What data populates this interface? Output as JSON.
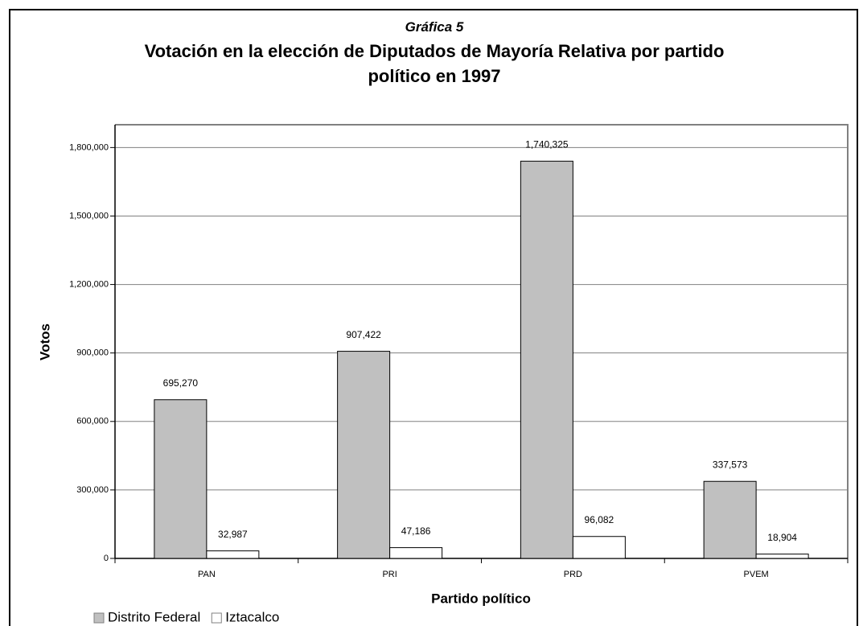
{
  "chart_data": {
    "type": "bar",
    "label": "Gráfica 5",
    "title": "Votación en la elección de Diputados de Mayoría Relativa por partido político en 1997",
    "x_label": "Partido político",
    "y_label": "Votos",
    "categories": [
      "PAN",
      "PRI",
      "PRD",
      "PVEM"
    ],
    "series": [
      {
        "name": "Distrito Federal",
        "color": "#c0c0c0",
        "values": [
          695270,
          907422,
          1740325,
          337573
        ],
        "value_labels": [
          "695,270",
          "907,422",
          "1,740,325",
          "337,573"
        ]
      },
      {
        "name": "Iztacalco",
        "color": "#ffffff",
        "values": [
          32987,
          47186,
          96082,
          18904
        ],
        "value_labels": [
          "32,987",
          "47,186",
          "96,082",
          "18,904"
        ]
      }
    ],
    "ylim": [
      0,
      1900000
    ],
    "yticks": [
      0,
      {
        "value": 300000,
        "label": "300,000"
      },
      {
        "value": 600000,
        "label": "600,000"
      },
      {
        "value": 900000,
        "label": "900,000"
      },
      {
        "value": 1200000,
        "label": "1,200,000"
      },
      {
        "value": 1500000,
        "label": "1,500,000"
      },
      {
        "value": 1800000,
        "label": "1,800,000"
      }
    ],
    "grid": true,
    "legend": "bottom-left"
  }
}
